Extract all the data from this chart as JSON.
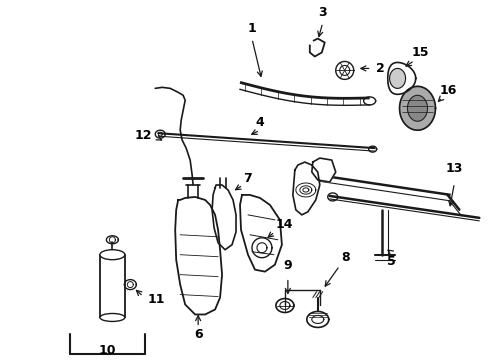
{
  "bg_color": "#ffffff",
  "line_color": "#1a1a1a",
  "text_color": "#000000",
  "figsize": [
    4.89,
    3.6
  ],
  "dpi": 100
}
